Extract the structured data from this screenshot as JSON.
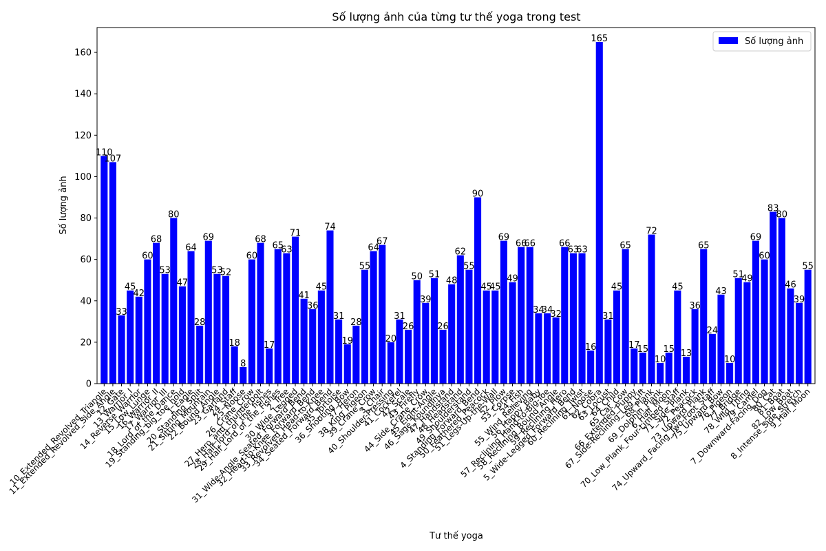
{
  "chart_data": {
    "type": "bar",
    "title": "Số lượng ảnh của từng tư thế yoga trong test",
    "xlabel": "Tư thế yoga",
    "ylabel": "Số lượng ảnh",
    "ylim": [
      0,
      172
    ],
    "yticks": [
      0,
      20,
      40,
      60,
      80,
      100,
      120,
      140,
      160
    ],
    "grid": false,
    "legend_position": "top-right",
    "colors": {
      "bar": "#0000ff",
      "axis": "#000000",
      "background": "#ffffff"
    },
    "series": [
      {
        "name": "Số lượng ảnh",
        "values": [
          110,
          107,
          33,
          45,
          42,
          60,
          68,
          53,
          80,
          47,
          64,
          28,
          69,
          53,
          52,
          18,
          8,
          60,
          68,
          17,
          65,
          63,
          71,
          41,
          36,
          45,
          74,
          31,
          19,
          28,
          55,
          64,
          67,
          20,
          31,
          26,
          50,
          39,
          51,
          26,
          48,
          62,
          55,
          90,
          45,
          45,
          69,
          49,
          66,
          66,
          34,
          34,
          32,
          66,
          63,
          63,
          16,
          165,
          31,
          45,
          65,
          17,
          15,
          72,
          10,
          15,
          45,
          13,
          36,
          65,
          24,
          43,
          10,
          51,
          49,
          69,
          60,
          83,
          80,
          46,
          39,
          55
        ]
      }
    ],
    "categories": [
      "10_Extended_Revolved_Triangle",
      "11_Extended_Revolved_Side_Angle",
      "12_Gate",
      "13_Warrior_I",
      "14_Reverse_Warrior",
      "15_Low_Lunge",
      "16_Warrior_II",
      "17_Warrior_III",
      "18_Lord_of_the_Dance",
      "19_Standing_big_toe_hold",
      "1_Eagle",
      "20_Standing_Split",
      "21_Sitting_Mountain",
      "22_Bound_Angle",
      "23_Garland",
      "24_Staff",
      "25_Noose",
      "26_Crane_Crow",
      "27_Hero_and_thunderbolt",
      "28_Half_lord_of_the_fishes",
      "29_Half_Lord_of_the_Fishes",
      "2_Tree",
      "30_Wide_Legged",
      "31_Wide-Angle_Seated_Forward_Bend",
      "32_Head-to-Knee_Forward_Bend",
      "33_Revolved_Head-to-Knee",
      "34_Seated_Forward_Bend",
      "35_Tortoise",
      "36_Shooting_Bow",
      "37_Heron",
      "38_King_Pigeon",
      "39_Crane_Crow",
      "3_Chair",
      "40_Shoulder-Pressing",
      "41_Cockerel",
      "42_Scale",
      "43_Firefly",
      "44_Side_Crane_Crow",
      "45_Eight-Angle",
      "46_Sage_Koundinya",
      "47_Handstand",
      "48_Headstand",
      "49_Shoulderstand",
      "4_Standing_Forward_Bend",
      "50_Feathered_Peacock",
      "51_Legs-Up-the-Wall",
      "52_Plow",
      "53_Corpse",
      "54_Fish",
      "55_Wind_Relieving",
      "56_Happy_Baby",
      "57_Reclining_Hand-to-Big-Toe",
      "58_Reclining_Bound_Angle",
      "59_Reclining_Hero",
      "5_Wide-Legged_Forward_Bend",
      "60_Reclining_Twist",
      "61_Noose",
      "62_Cobra",
      "63_Locust",
      "64_Child",
      "65_Cat_Cow",
      "66_Extended_Puppy",
      "67_Side-Reclining_Leg_Lift",
      "68_Plank",
      "69_Dolphin_Plank",
      "6_Half_Moon",
      "70_Low_Plank_Four-Limbed_Staff",
      "71_Side_Plank",
      "72_Peacock",
      "73_Upward_Plank",
      "74_Upward_Facing_Two-Foot_Staff",
      "75_Upward_Bow",
      "76_Pigeon",
      "77_Bridge",
      "78_Wild_Thing",
      "79_Camel",
      "7_Downward-Facing_Dog",
      "80_Cat",
      "81_Boat",
      "82_Low_Boat",
      "8_Intense_Side_Stretch",
      "9_Half_Moon"
    ]
  }
}
